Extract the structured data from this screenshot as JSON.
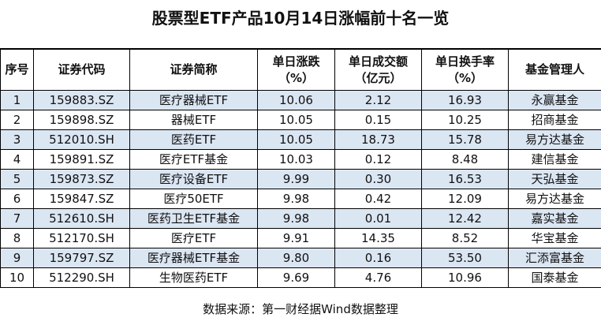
{
  "title": "股票型ETF产品10月14日涨幅前十名一览",
  "table": {
    "headers": [
      [
        "序号"
      ],
      [
        "证券代码"
      ],
      [
        "证券简称"
      ],
      [
        "单日涨跌",
        "（%）"
      ],
      [
        "单日成交额",
        "（亿元）"
      ],
      [
        "单日换手率",
        "（%）"
      ],
      [
        "基金管理人"
      ]
    ],
    "rows": [
      [
        "1",
        "159883.SZ",
        "医疗器械ETF",
        "10.06",
        "2.12",
        "16.93",
        "永赢基金"
      ],
      [
        "2",
        "159898.SZ",
        "器械ETF",
        "10.05",
        "0.15",
        "10.25",
        "招商基金"
      ],
      [
        "3",
        "512010.SH",
        "医药ETF",
        "10.05",
        "18.73",
        "15.78",
        "易方达基金"
      ],
      [
        "4",
        "159891.SZ",
        "医疗ETF基金",
        "10.03",
        "0.12",
        "8.48",
        "建信基金"
      ],
      [
        "5",
        "159873.SZ",
        "医疗设备ETF",
        "9.99",
        "0.30",
        "16.53",
        "天弘基金"
      ],
      [
        "6",
        "159847.SZ",
        "医疗50ETF",
        "9.98",
        "0.42",
        "12.09",
        "易方达基金"
      ],
      [
        "7",
        "512610.SH",
        "医药卫生ETF基金",
        "9.98",
        "0.01",
        "12.42",
        "嘉实基金"
      ],
      [
        "8",
        "512170.SH",
        "医疗ETF",
        "9.91",
        "14.35",
        "8.52",
        "华宝基金"
      ],
      [
        "9",
        "159797.SZ",
        "医疗器械ETF基金",
        "9.80",
        "0.16",
        "53.50",
        "汇添富基金"
      ],
      [
        "10",
        "512290.SH",
        "生物医药ETF",
        "9.69",
        "4.76",
        "10.96",
        "国泰基金"
      ]
    ]
  },
  "source": "数据来源：第一财经据Wind数据整理",
  "colors": {
    "row_stripe": "#dbe6f3",
    "border": "#000000"
  }
}
